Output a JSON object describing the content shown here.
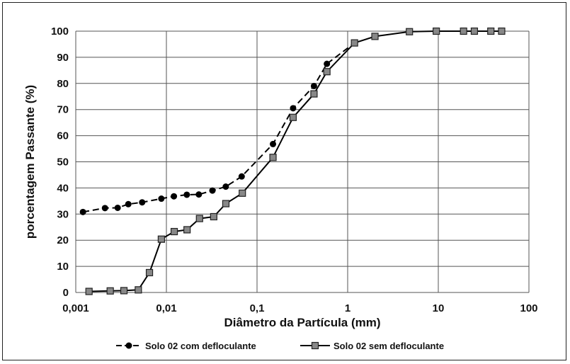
{
  "chart_data": {
    "type": "scatter",
    "title": "",
    "xlabel": "Diâmetro da Partícula (mm)",
    "ylabel": "porcentagem Passante (%)",
    "x_scale": "log",
    "xlim": [
      0.001,
      100
    ],
    "ylim": [
      0,
      100
    ],
    "x_ticks": [
      "0,001",
      "0,01",
      "0,1",
      "1",
      "10",
      "100"
    ],
    "y_ticks": [
      "0",
      "10",
      "20",
      "30",
      "40",
      "50",
      "60",
      "70",
      "80",
      "90",
      "100"
    ],
    "grid": true,
    "legend_position": "bottom",
    "series": [
      {
        "name": "Solo 02 com defloculante",
        "line_style": "dashed",
        "marker": "circle",
        "color": "#000000",
        "x": [
          0.0012,
          0.0021,
          0.0029,
          0.0038,
          0.0054,
          0.0088,
          0.0121,
          0.0168,
          0.0228,
          0.0322,
          0.0452,
          0.0677,
          0.15,
          0.25,
          0.425,
          0.59,
          1.19
        ],
        "y": [
          30.8,
          32.3,
          32.4,
          33.8,
          34.5,
          35.9,
          36.8,
          37.4,
          37.5,
          39,
          40.5,
          44.4,
          56.8,
          70.5,
          79,
          87.5,
          95.5
        ]
      },
      {
        "name": "Solo 02 sem defloculante",
        "line_style": "solid",
        "marker": "square",
        "color": "#000000",
        "x": [
          0.0014,
          0.0024,
          0.0034,
          0.0049,
          0.0065,
          0.0088,
          0.0122,
          0.0169,
          0.0232,
          0.0333,
          0.0453,
          0.0688,
          0.15,
          0.25,
          0.425,
          0.59,
          1.19,
          2,
          4.8,
          9.5,
          19,
          25,
          38,
          50
        ],
        "y": [
          0.4,
          0.6,
          0.7,
          1,
          7.6,
          20.4,
          23.3,
          24,
          28.3,
          29,
          34,
          38,
          51.7,
          67,
          76,
          84.5,
          95.5,
          98,
          99.8,
          100,
          100,
          100,
          100,
          100
        ]
      }
    ]
  }
}
